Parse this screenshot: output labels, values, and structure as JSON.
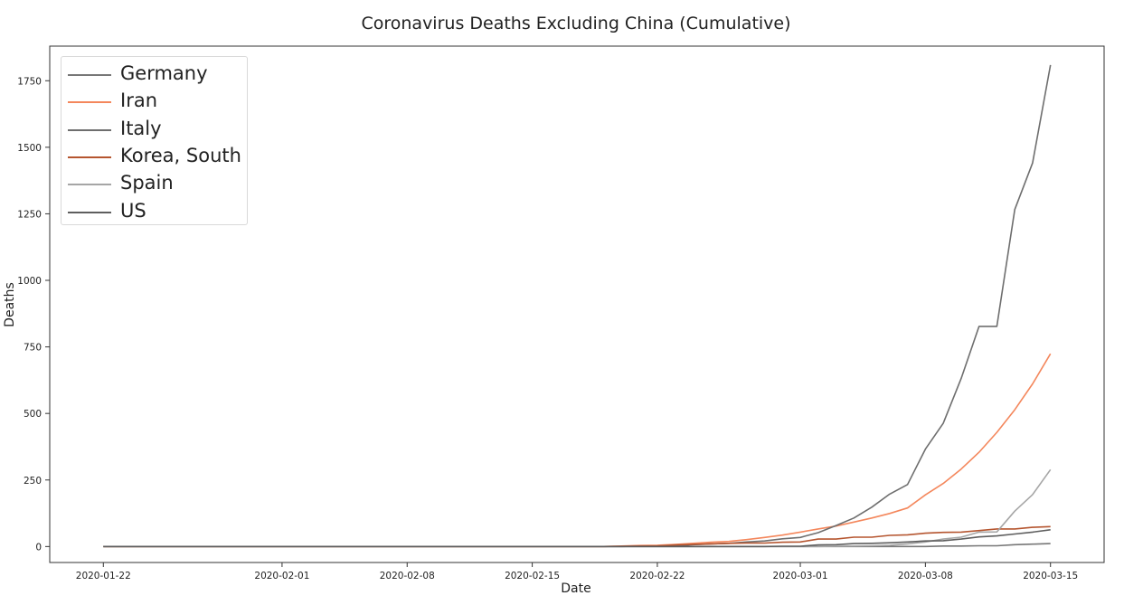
{
  "chart_data": {
    "type": "line",
    "title": "Coronavirus Deaths Excluding China (Cumulative)",
    "xlabel": "Date",
    "ylabel": "Deaths",
    "ylim": [
      -60,
      1880
    ],
    "xlim": [
      "2020-01-19",
      "2020-03-18"
    ],
    "yticks": [
      0,
      250,
      500,
      750,
      1000,
      1250,
      1500,
      1750
    ],
    "xticks": [
      "2020-01-22",
      "2020-02-01",
      "2020-02-08",
      "2020-02-15",
      "2020-02-22",
      "2020-03-01",
      "2020-03-08",
      "2020-03-15"
    ],
    "grid": false,
    "legend_position": "top-left",
    "series": [
      {
        "name": "Germany",
        "color": "#777777",
        "points": [
          [
            "2020-01-22",
            0
          ],
          [
            "2020-03-08",
            0
          ],
          [
            "2020-03-09",
            2
          ],
          [
            "2020-03-10",
            2
          ],
          [
            "2020-03-11",
            3
          ],
          [
            "2020-03-12",
            3
          ],
          [
            "2020-03-13",
            7
          ],
          [
            "2020-03-14",
            9
          ],
          [
            "2020-03-15",
            11
          ]
        ]
      },
      {
        "name": "Iran",
        "color": "#f4875c",
        "points": [
          [
            "2020-01-22",
            0
          ],
          [
            "2020-02-19",
            0
          ],
          [
            "2020-02-20",
            2
          ],
          [
            "2020-02-21",
            4
          ],
          [
            "2020-02-22",
            5
          ],
          [
            "2020-02-23",
            8
          ],
          [
            "2020-02-24",
            12
          ],
          [
            "2020-02-25",
            16
          ],
          [
            "2020-02-26",
            19
          ],
          [
            "2020-02-27",
            26
          ],
          [
            "2020-02-28",
            34
          ],
          [
            "2020-02-29",
            43
          ],
          [
            "2020-03-01",
            54
          ],
          [
            "2020-03-02",
            66
          ],
          [
            "2020-03-03",
            77
          ],
          [
            "2020-03-04",
            92
          ],
          [
            "2020-03-05",
            107
          ],
          [
            "2020-03-06",
            124
          ],
          [
            "2020-03-07",
            145
          ],
          [
            "2020-03-08",
            194
          ],
          [
            "2020-03-09",
            237
          ],
          [
            "2020-03-10",
            291
          ],
          [
            "2020-03-11",
            354
          ],
          [
            "2020-03-12",
            429
          ],
          [
            "2020-03-13",
            514
          ],
          [
            "2020-03-14",
            611
          ],
          [
            "2020-03-15",
            724
          ]
        ]
      },
      {
        "name": "Italy",
        "color": "#6e6e6e",
        "points": [
          [
            "2020-01-22",
            0
          ],
          [
            "2020-02-20",
            0
          ],
          [
            "2020-02-21",
            1
          ],
          [
            "2020-02-22",
            2
          ],
          [
            "2020-02-23",
            3
          ],
          [
            "2020-02-24",
            7
          ],
          [
            "2020-02-25",
            10
          ],
          [
            "2020-02-26",
            12
          ],
          [
            "2020-02-27",
            17
          ],
          [
            "2020-02-28",
            21
          ],
          [
            "2020-02-29",
            29
          ],
          [
            "2020-03-01",
            34
          ],
          [
            "2020-03-02",
            52
          ],
          [
            "2020-03-03",
            79
          ],
          [
            "2020-03-04",
            107
          ],
          [
            "2020-03-05",
            148
          ],
          [
            "2020-03-06",
            197
          ],
          [
            "2020-03-07",
            233
          ],
          [
            "2020-03-08",
            366
          ],
          [
            "2020-03-09",
            463
          ],
          [
            "2020-03-10",
            631
          ],
          [
            "2020-03-11",
            827
          ],
          [
            "2020-03-12",
            827
          ],
          [
            "2020-03-13",
            1266
          ],
          [
            "2020-03-14",
            1441
          ],
          [
            "2020-03-15",
            1809
          ]
        ]
      },
      {
        "name": "Korea, South",
        "color": "#b5552f",
        "points": [
          [
            "2020-01-22",
            0
          ],
          [
            "2020-02-19",
            0
          ],
          [
            "2020-02-20",
            1
          ],
          [
            "2020-02-21",
            2
          ],
          [
            "2020-02-22",
            2
          ],
          [
            "2020-02-23",
            6
          ],
          [
            "2020-02-24",
            8
          ],
          [
            "2020-02-25",
            10
          ],
          [
            "2020-02-26",
            12
          ],
          [
            "2020-02-27",
            13
          ],
          [
            "2020-02-28",
            13
          ],
          [
            "2020-02-29",
            16
          ],
          [
            "2020-03-01",
            17
          ],
          [
            "2020-03-02",
            28
          ],
          [
            "2020-03-03",
            28
          ],
          [
            "2020-03-04",
            35
          ],
          [
            "2020-03-05",
            35
          ],
          [
            "2020-03-06",
            42
          ],
          [
            "2020-03-07",
            44
          ],
          [
            "2020-03-08",
            50
          ],
          [
            "2020-03-09",
            53
          ],
          [
            "2020-03-10",
            54
          ],
          [
            "2020-03-11",
            60
          ],
          [
            "2020-03-12",
            66
          ],
          [
            "2020-03-13",
            66
          ],
          [
            "2020-03-14",
            72
          ],
          [
            "2020-03-15",
            75
          ]
        ]
      },
      {
        "name": "Spain",
        "color": "#a6a6a6",
        "points": [
          [
            "2020-01-22",
            0
          ],
          [
            "2020-03-02",
            0
          ],
          [
            "2020-03-03",
            1
          ],
          [
            "2020-03-04",
            2
          ],
          [
            "2020-03-05",
            3
          ],
          [
            "2020-03-06",
            5
          ],
          [
            "2020-03-07",
            10
          ],
          [
            "2020-03-08",
            17
          ],
          [
            "2020-03-09",
            28
          ],
          [
            "2020-03-10",
            35
          ],
          [
            "2020-03-11",
            54
          ],
          [
            "2020-03-12",
            55
          ],
          [
            "2020-03-13",
            133
          ],
          [
            "2020-03-14",
            195
          ],
          [
            "2020-03-15",
            289
          ]
        ]
      },
      {
        "name": "US",
        "color": "#5e5e5e",
        "points": [
          [
            "2020-01-22",
            0
          ],
          [
            "2020-02-28",
            0
          ],
          [
            "2020-02-29",
            1
          ],
          [
            "2020-03-01",
            1
          ],
          [
            "2020-03-02",
            6
          ],
          [
            "2020-03-03",
            7
          ],
          [
            "2020-03-04",
            11
          ],
          [
            "2020-03-05",
            12
          ],
          [
            "2020-03-06",
            14
          ],
          [
            "2020-03-07",
            17
          ],
          [
            "2020-03-08",
            21
          ],
          [
            "2020-03-09",
            22
          ],
          [
            "2020-03-10",
            28
          ],
          [
            "2020-03-11",
            36
          ],
          [
            "2020-03-12",
            40
          ],
          [
            "2020-03-13",
            47
          ],
          [
            "2020-03-14",
            54
          ],
          [
            "2020-03-15",
            63
          ]
        ]
      }
    ]
  }
}
